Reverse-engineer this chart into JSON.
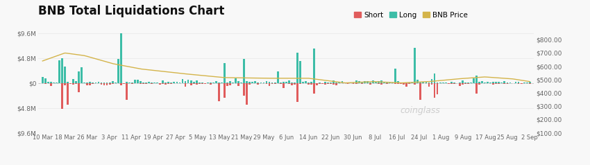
{
  "title": "BNB Total Liquidations Chart",
  "title_fontsize": 12,
  "background_color": "#f8f8f8",
  "bar_color_long": "#3dbda7",
  "bar_color_short": "#e05c5c",
  "price_line_color": "#d4b44a",
  "left_ylim": [
    -9600000,
    9600000
  ],
  "left_yticks": [
    9600000,
    4800000,
    0,
    -4800000,
    -9600000
  ],
  "left_yticklabels": [
    "$9.6M",
    "$4.8M",
    "$0",
    "$4.8M",
    "$9.6M"
  ],
  "right_ylim": [
    100,
    850
  ],
  "right_yticks": [
    100,
    200,
    300,
    400,
    500,
    600,
    700,
    800
  ],
  "right_yticklabels": [
    "$100.00",
    "$200.00",
    "$300.00",
    "$400.00",
    "$500.00",
    "$600.00",
    "$700.00",
    "$800.00"
  ],
  "xlabel_dates": [
    "10 Mar",
    "18 Mar",
    "26 Mar",
    "3 Apr",
    "11 Apr",
    "19 Apr",
    "27 Apr",
    "5 May",
    "13 May",
    "21 May",
    "29 May",
    "6 Jun",
    "14 Jun",
    "22 Jun",
    "30 Jun",
    "8 Jul",
    "16 Jul",
    "24 Jul",
    "1 Aug",
    "9 Aug",
    "17 Aug",
    "25 Aug",
    "2 Sep"
  ],
  "legend_labels": [
    "Short",
    "Long",
    "BNB Price"
  ],
  "legend_colors": [
    "#e05c5c",
    "#3dbda7",
    "#d4b44a"
  ],
  "watermark": "coinglass",
  "watermark_color": "#cccccc",
  "num_bars": 175,
  "bar_width": 0.7,
  "price_points_x": [
    0,
    8,
    15,
    25,
    35,
    50,
    65,
    80,
    95,
    108,
    118,
    128,
    138,
    148,
    158,
    168,
    174
  ],
  "price_points_y": [
    640,
    700,
    680,
    620,
    580,
    545,
    515,
    510,
    510,
    475,
    485,
    475,
    485,
    505,
    520,
    505,
    485
  ]
}
